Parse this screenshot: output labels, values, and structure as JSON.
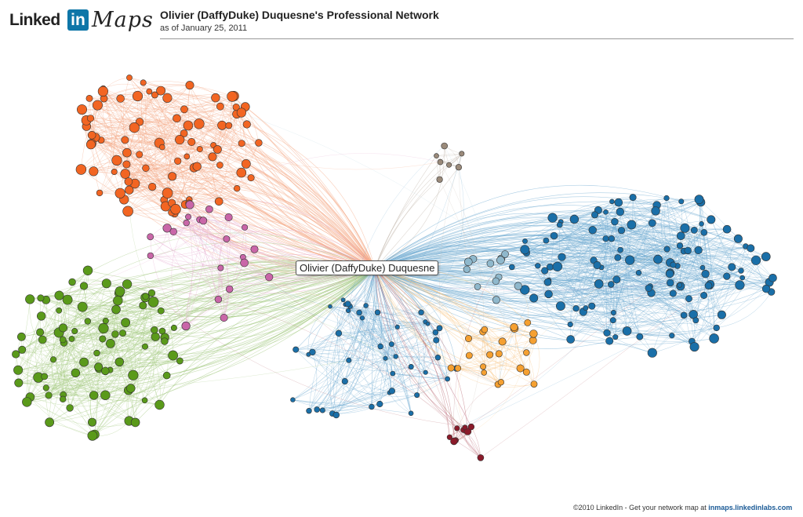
{
  "header": {
    "logo_text": "Linked",
    "logo_in": "in",
    "logo_product": "Maps",
    "title": "Olivier (DaffyDuke) Duquesne's Professional Network",
    "date": "as of January 25, 2011"
  },
  "center_node": {
    "label": "Olivier (DaffyDuke) Duquesne"
  },
  "footer": {
    "text": "©2010 LinkedIn - Get your network map at",
    "link": "inmaps.linkedinlabs.com"
  },
  "clusters": [
    {
      "name": "orange-red",
      "color": "#f26522",
      "edge_color": "#f4a582"
    },
    {
      "name": "green",
      "color": "#5a9a1a",
      "edge_color": "#9fc77a"
    },
    {
      "name": "pink",
      "color": "#c966a8",
      "edge_color": "#e6a9cf"
    },
    {
      "name": "blue",
      "color": "#1a6fa8",
      "edge_color": "#6aa7cf"
    },
    {
      "name": "light-blue",
      "color": "#8fb8cc",
      "edge_color": "#b8d3e0"
    },
    {
      "name": "orange",
      "color": "#f5a031",
      "edge_color": "#f7c27e"
    },
    {
      "name": "dark-red",
      "color": "#8a1a2a",
      "edge_color": "#b5606b"
    },
    {
      "name": "brown-gray",
      "color": "#9a8a7a",
      "edge_color": "#c2b8ad"
    }
  ]
}
